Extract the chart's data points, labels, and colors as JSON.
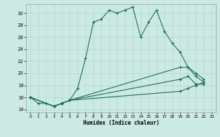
{
  "xlabel": "Humidex (Indice chaleur)",
  "bg_color": "#cce9e4",
  "line_color": "#1a6b5a",
  "grid_color": "#b0d8d0",
  "xlim": [
    -0.5,
    23.5
  ],
  "ylim": [
    13.5,
    31.5
  ],
  "yticks": [
    14,
    16,
    18,
    20,
    22,
    24,
    26,
    28,
    30
  ],
  "xticks": [
    0,
    1,
    2,
    3,
    4,
    5,
    6,
    7,
    8,
    9,
    10,
    11,
    12,
    13,
    14,
    15,
    16,
    17,
    18,
    19,
    20,
    21,
    22,
    23
  ],
  "series1_x": [
    0,
    1,
    2,
    3,
    4,
    5,
    6,
    7,
    8,
    9,
    10,
    11,
    12,
    13,
    14,
    15,
    16,
    17,
    18,
    19,
    20,
    21,
    22
  ],
  "series1_y": [
    16.0,
    15.0,
    15.0,
    14.5,
    15.0,
    15.5,
    17.5,
    22.5,
    28.5,
    29.0,
    30.5,
    30.0,
    30.5,
    31.0,
    26.0,
    28.5,
    30.5,
    27.0,
    25.0,
    23.5,
    21.0,
    20.0,
    19.0
  ],
  "series2_x": [
    0,
    3,
    4,
    5,
    19,
    20,
    21,
    22
  ],
  "series2_y": [
    16.0,
    14.5,
    15.0,
    15.5,
    21.0,
    21.0,
    19.5,
    18.5
  ],
  "series3_x": [
    0,
    3,
    4,
    5,
    19,
    20,
    21,
    22
  ],
  "series3_y": [
    16.0,
    14.5,
    15.0,
    15.5,
    19.0,
    19.5,
    18.2,
    18.2
  ],
  "series4_x": [
    0,
    3,
    4,
    5,
    19,
    20,
    21,
    22
  ],
  "series4_y": [
    16.0,
    14.5,
    15.0,
    15.5,
    17.0,
    17.5,
    18.0,
    18.5
  ]
}
